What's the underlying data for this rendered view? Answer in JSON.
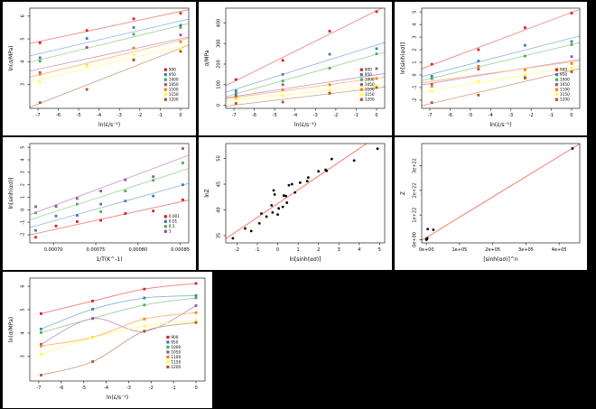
{
  "background_color": "#000000",
  "panel_color": "#ffffff",
  "accent_fit_color": "#f95f50",
  "palette_set1": [
    "#E41A1C",
    "#377EB8",
    "#4DAF4A",
    "#984EA3",
    "#FF7F00",
    "#FFFF33",
    "#A65628"
  ],
  "temperature_legend_labels": [
    "900",
    "950",
    "1000",
    "1050",
    "1100",
    "1150",
    "1200"
  ],
  "strain_rate_legend_labels": [
    "0.001",
    "0.01",
    "0.1",
    "1"
  ],
  "chart_data": [
    {
      "id": "ln-stress-vs-ln-rate",
      "type": "scatter",
      "fit": "linear",
      "xlabel": "ln(ε̇/s⁻¹)",
      "ylabel": "ln(σ/MPa)",
      "xlim": [
        -7.4,
        0.4
      ],
      "ylim": [
        1.95,
        6.35
      ],
      "xticks": [
        -7,
        -6,
        -5,
        -4,
        -3,
        -2,
        -1,
        0
      ],
      "yticks": [
        3,
        4,
        5,
        6
      ],
      "x": [
        -6.9,
        -4.6,
        -2.3,
        0
      ],
      "series": [
        {
          "name": "900",
          "color": "#E41A1C",
          "values": [
            4.83,
            5.37,
            5.88,
            6.12
          ]
        },
        {
          "name": "950",
          "color": "#377EB8",
          "values": [
            4.17,
            5.02,
            5.5,
            5.6
          ]
        },
        {
          "name": "1000",
          "color": "#4DAF4A",
          "values": [
            4.02,
            4.63,
            5.2,
            5.5
          ]
        },
        {
          "name": "1050",
          "color": "#984EA3",
          "values": [
            3.52,
            4.62,
            4.07,
            5.17
          ]
        },
        {
          "name": "1100",
          "color": "#FF7F00",
          "values": [
            3.45,
            3.82,
            4.6,
            4.87
          ]
        },
        {
          "name": "1150",
          "color": "#FFFF33",
          "values": [
            3.1,
            3.8,
            4.3,
            4.55
          ]
        },
        {
          "name": "1200",
          "color": "#A65628",
          "values": [
            2.2,
            2.78,
            4.08,
            4.45
          ]
        }
      ],
      "legend": {
        "x": 0.845,
        "y": 0.6
      }
    },
    {
      "id": "stress-vs-ln-rate",
      "type": "scatter",
      "fit": "linear",
      "xlabel": "ln(ε̇/s⁻¹)",
      "ylabel": "σ/MPa",
      "xlim": [
        -7.4,
        0.4
      ],
      "ylim": [
        -15,
        472
      ],
      "xticks": [
        -7,
        -6,
        -5,
        -4,
        -3,
        -2,
        -1,
        0
      ],
      "yticks": [
        0,
        100,
        200,
        300,
        400
      ],
      "x": [
        -6.9,
        -4.6,
        -2.3,
        0
      ],
      "series": [
        {
          "name": "900",
          "color": "#E41A1C",
          "values": [
            125,
            218,
            360,
            455
          ]
        },
        {
          "name": "950",
          "color": "#377EB8",
          "values": [
            70,
            150,
            248,
            275
          ]
        },
        {
          "name": "1000",
          "color": "#4DAF4A",
          "values": [
            58,
            118,
            180,
            250
          ]
        },
        {
          "name": "1050",
          "color": "#984EA3",
          "values": [
            48,
            100,
            58,
            178
          ]
        },
        {
          "name": "1100",
          "color": "#FF7F00",
          "values": [
            35,
            75,
            100,
            130
          ]
        },
        {
          "name": "1150",
          "color": "#FFFF33",
          "values": [
            28,
            46,
            74,
            95
          ]
        },
        {
          "name": "1200",
          "color": "#A65628",
          "values": [
            9,
            16,
            59,
            86
          ]
        }
      ],
      "legend": {
        "x": 0.845,
        "y": 0.6
      }
    },
    {
      "id": "ln-sinh-vs-ln-rate",
      "type": "scatter",
      "fit": "linear",
      "xlabel": "ln(ε̇/s⁻¹)",
      "ylabel": "ln[sinh(ασ)]",
      "xlim": [
        -7.4,
        0.4
      ],
      "ylim": [
        -2.65,
        5.3
      ],
      "xticks": [
        -7,
        -6,
        -5,
        -4,
        -3,
        -2,
        -1,
        0
      ],
      "yticks": [
        -2,
        -1,
        0,
        1,
        2,
        3,
        4,
        5
      ],
      "x": [
        -6.9,
        -4.6,
        -2.3,
        0
      ],
      "series": [
        {
          "name": "900",
          "color": "#E41A1C",
          "values": [
            0.85,
            2.0,
            3.75,
            4.9
          ]
        },
        {
          "name": "950",
          "color": "#377EB8",
          "values": [
            -0.1,
            1.1,
            2.35,
            2.65
          ]
        },
        {
          "name": "1000",
          "color": "#4DAF4A",
          "values": [
            -0.3,
            0.7,
            1.5,
            2.4
          ]
        },
        {
          "name": "1050",
          "color": "#984EA3",
          "values": [
            -0.75,
            0.45,
            -0.2,
            1.45
          ]
        },
        {
          "name": "1100",
          "color": "#FF7F00",
          "values": [
            -0.9,
            0.65,
            0.4,
            0.9
          ]
        },
        {
          "name": "1150",
          "color": "#FFFF33",
          "values": [
            -1.3,
            -0.5,
            0.0,
            0.55
          ]
        },
        {
          "name": "1200",
          "color": "#A65628",
          "values": [
            -2.2,
            -1.6,
            -0.25,
            0.25
          ]
        }
      ],
      "legend": {
        "x": 0.845,
        "y": 0.6
      }
    },
    {
      "id": "ln-sinh-vs-inverse-T",
      "type": "scatter",
      "fit": "linear",
      "xlabel": "1/T(K^-1)",
      "ylabel": "ln[sinh(ασ)]",
      "xlim": [
        0.000672,
        0.00086
      ],
      "ylim": [
        -2.65,
        5.3
      ],
      "xticks": [
        0.0007,
        0.00075,
        0.0008,
        0.00085
      ],
      "xtick_labels": [
        "0.00070",
        "0.00075",
        "0.00080",
        "0.00085"
      ],
      "yticks": [
        -2,
        -1,
        0,
        1,
        2,
        3,
        4,
        5
      ],
      "x": [
        0.000679,
        0.000703,
        0.000728,
        0.000756,
        0.000785,
        0.000818,
        0.000853
      ],
      "series": [
        {
          "name": "0.001",
          "color": "#E41A1C",
          "values": [
            -2.2,
            -1.3,
            -0.95,
            -0.85,
            -0.3,
            -0.1,
            0.8
          ]
        },
        {
          "name": "0.01",
          "color": "#377EB8",
          "values": [
            -1.65,
            -0.5,
            -0.45,
            0.45,
            0.7,
            1.1,
            2.0
          ]
        },
        {
          "name": "0.1",
          "color": "#4DAF4A",
          "values": [
            -0.25,
            0.25,
            0.45,
            -0.15,
            1.5,
            2.35,
            3.75
          ]
        },
        {
          "name": "1",
          "color": "#984EA3",
          "values": [
            0.25,
            0.3,
            0.9,
            1.5,
            2.4,
            2.65,
            4.9
          ]
        }
      ],
      "legend": {
        "x": 0.845,
        "y": 0.72
      }
    },
    {
      "id": "lnZ-vs-ln-sinh",
      "type": "scatter",
      "fit": "linear",
      "xlabel": "ln[sinh(ασ)]",
      "ylabel": "lnZ",
      "xlim": [
        -2.55,
        5.25
      ],
      "ylim": [
        33.6,
        52.9
      ],
      "xticks": [
        -2,
        -1,
        0,
        1,
        2,
        3,
        4,
        5
      ],
      "yticks": [
        35,
        40,
        45,
        50
      ],
      "point_color": "#000000",
      "fit_color": "#f95f50",
      "points": [
        [
          -2.2,
          34.5
        ],
        [
          -1.6,
          36.4
        ],
        [
          -1.3,
          35.9
        ],
        [
          -0.9,
          37.4
        ],
        [
          -0.8,
          39.3
        ],
        [
          -0.55,
          38.7
        ],
        [
          -0.3,
          40.9
        ],
        [
          -0.25,
          39.5
        ],
        [
          -0.2,
          43.8
        ],
        [
          -0.15,
          43.0
        ],
        [
          0.0,
          39.1
        ],
        [
          0.05,
          40.3
        ],
        [
          0.25,
          40.6
        ],
        [
          0.3,
          42.8
        ],
        [
          0.4,
          42.7
        ],
        [
          0.45,
          41.4
        ],
        [
          0.55,
          44.8
        ],
        [
          0.7,
          45.0
        ],
        [
          0.85,
          43.4
        ],
        [
          1.1,
          45.3
        ],
        [
          1.45,
          45.6
        ],
        [
          1.5,
          46.3
        ],
        [
          2.0,
          47.5
        ],
        [
          2.35,
          47.8
        ],
        [
          2.4,
          47.6
        ],
        [
          2.65,
          49.9
        ],
        [
          3.75,
          49.6
        ],
        [
          4.9,
          51.9
        ]
      ]
    },
    {
      "id": "Z-vs-sinh-power-n",
      "type": "scatter",
      "fit": "linear",
      "xlabel": "[sinh(ασ)]^n",
      "ylabel": "Z",
      "xlim": [
        -14000,
        462000
      ],
      "ylim": [
        -1.3e+21,
        3.9e+22
      ],
      "xticks": [
        0,
        100000,
        200000,
        300000,
        400000
      ],
      "xtick_labels": [
        "0e+00",
        "1e+05",
        "2e+05",
        "3e+05",
        "4e+05"
      ],
      "yticks": [
        0,
        1e+22,
        2e+22,
        3e+22
      ],
      "ytick_labels": [
        "0e+00",
        "1e+22",
        "2e+22",
        "3e+22"
      ],
      "point_color": "#000000",
      "fit_color": "#f95f50",
      "points": [
        [
          100,
          2e+19
        ],
        [
          300,
          6e+19
        ],
        [
          600,
          1.3e+20
        ],
        [
          1000,
          2.5e+20
        ],
        [
          1800,
          4e+20
        ],
        [
          2800,
          5.5e+20
        ],
        [
          4000,
          4.3e+21
        ],
        [
          21000,
          4e+21
        ],
        [
          440000,
          3.7e+22
        ]
      ]
    },
    {
      "id": "ln-stress-vs-ln-rate-spline",
      "type": "scatter",
      "fit": "spline",
      "xlabel": "ln(ε̇/s⁻¹)",
      "ylabel": "ln(σ/MPa)",
      "xlim": [
        -7.4,
        0.4
      ],
      "ylim": [
        1.95,
        6.35
      ],
      "xticks": [
        -7,
        -6,
        -5,
        -4,
        -3,
        -2,
        -1,
        0
      ],
      "yticks": [
        3,
        4,
        5,
        6
      ],
      "x": [
        -6.9,
        -4.6,
        -2.3,
        0
      ],
      "series": [
        {
          "name": "900",
          "color": "#E41A1C",
          "values": [
            4.83,
            5.37,
            5.88,
            6.12
          ]
        },
        {
          "name": "950",
          "color": "#377EB8",
          "values": [
            4.17,
            5.02,
            5.5,
            5.6
          ]
        },
        {
          "name": "1000",
          "color": "#4DAF4A",
          "values": [
            4.02,
            4.63,
            5.2,
            5.5
          ]
        },
        {
          "name": "1050",
          "color": "#984EA3",
          "values": [
            3.52,
            4.62,
            4.07,
            5.17
          ]
        },
        {
          "name": "1100",
          "color": "#FF7F00",
          "values": [
            3.45,
            3.82,
            4.6,
            4.87
          ]
        },
        {
          "name": "1150",
          "color": "#FFFF33",
          "values": [
            3.1,
            3.8,
            4.3,
            4.55
          ]
        },
        {
          "name": "1200",
          "color": "#A65628",
          "values": [
            2.2,
            2.78,
            4.08,
            4.45
          ]
        }
      ],
      "legend": {
        "x": 0.78,
        "y": 0.56
      }
    }
  ]
}
